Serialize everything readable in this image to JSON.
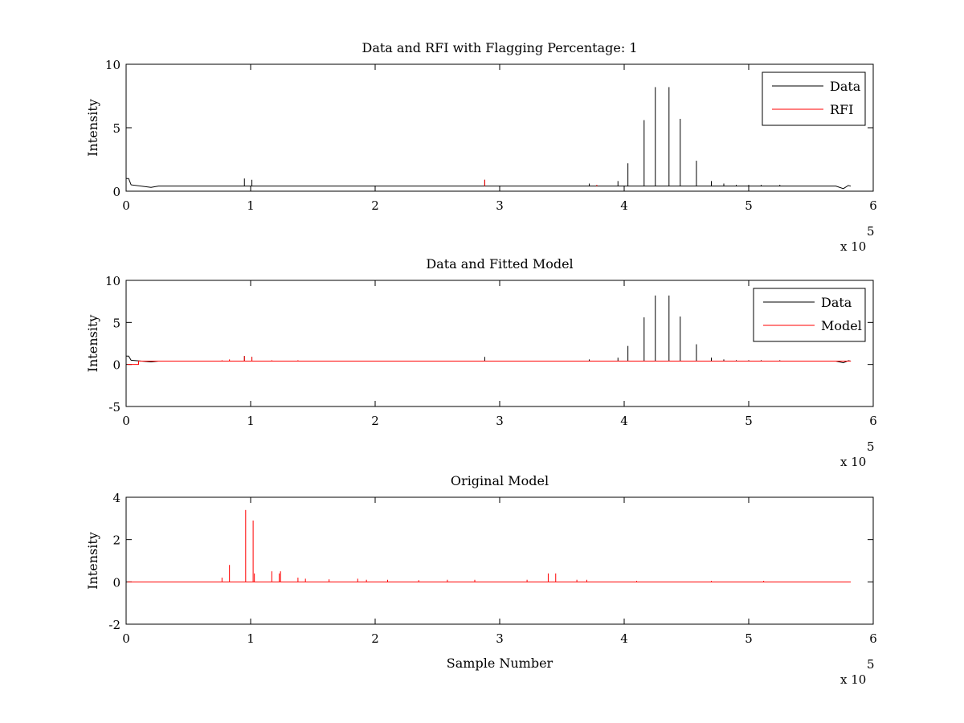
{
  "chart_data": [
    {
      "type": "line",
      "title": "Data and RFI with Flagging Percentage: 1",
      "xlabel": "",
      "ylabel": "Intensity",
      "xlim": [
        0,
        6
      ],
      "ylim": [
        0,
        10
      ],
      "x_ticks": [
        "0",
        "1",
        "2",
        "3",
        "4",
        "5",
        "6"
      ],
      "y_ticks": [
        "0",
        "5",
        "10"
      ],
      "x_exponent_label": "x 10",
      "x_exponent": "5",
      "legend_position": "top-right",
      "baseline": 0.4,
      "series": [
        {
          "name": "Data",
          "color": "#000000",
          "spikes": [
            [
              0.95,
              1.0
            ],
            [
              1.01,
              0.9
            ],
            [
              2.88,
              0.9
            ],
            [
              3.72,
              0.6
            ],
            [
              3.95,
              0.8
            ],
            [
              4.03,
              2.2
            ],
            [
              4.16,
              5.6
            ],
            [
              4.25,
              8.2
            ],
            [
              4.36,
              8.2
            ],
            [
              4.45,
              5.7
            ],
            [
              4.58,
              2.4
            ],
            [
              4.7,
              0.8
            ],
            [
              4.8,
              0.6
            ],
            [
              4.9,
              0.5
            ],
            [
              5.0,
              0.5
            ],
            [
              5.1,
              0.5
            ],
            [
              5.25,
              0.5
            ],
            [
              5.4,
              0.4
            ],
            [
              5.55,
              0.4
            ]
          ]
        },
        {
          "name": "RFI",
          "color": "#ff0000",
          "spikes": [
            [
              2.88,
              0.9
            ],
            [
              3.78,
              0.5
            ],
            [
              3.82,
              0.4
            ]
          ]
        }
      ]
    },
    {
      "type": "line",
      "title": "Data and Fitted Model",
      "xlabel": "",
      "ylabel": "Intensity",
      "xlim": [
        0,
        6
      ],
      "ylim": [
        -5,
        10
      ],
      "x_ticks": [
        "0",
        "1",
        "2",
        "3",
        "4",
        "5",
        "6"
      ],
      "y_ticks": [
        "-5",
        "0",
        "5",
        "10"
      ],
      "x_exponent_label": "x 10",
      "x_exponent": "5",
      "legend_position": "top-right",
      "baseline": 0.4,
      "series": [
        {
          "name": "Data",
          "color": "#000000",
          "spikes": [
            [
              0.95,
              1.0
            ],
            [
              1.01,
              0.9
            ],
            [
              2.88,
              0.9
            ],
            [
              3.72,
              0.6
            ],
            [
              3.95,
              0.8
            ],
            [
              4.03,
              2.2
            ],
            [
              4.16,
              5.6
            ],
            [
              4.25,
              8.2
            ],
            [
              4.36,
              8.2
            ],
            [
              4.45,
              5.7
            ],
            [
              4.58,
              2.4
            ],
            [
              4.7,
              0.8
            ],
            [
              4.8,
              0.6
            ],
            [
              4.9,
              0.5
            ],
            [
              5.0,
              0.5
            ],
            [
              5.1,
              0.5
            ],
            [
              5.25,
              0.5
            ],
            [
              5.4,
              0.4
            ],
            [
              5.55,
              0.4
            ]
          ]
        },
        {
          "name": "Model",
          "color": "#ff0000",
          "spikes": [
            [
              0.95,
              1.0
            ],
            [
              1.01,
              0.9
            ],
            [
              0.77,
              0.5
            ],
            [
              0.83,
              0.6
            ],
            [
              1.17,
              0.5
            ],
            [
              1.38,
              0.5
            ]
          ]
        }
      ]
    },
    {
      "type": "line",
      "title": "Original Model",
      "xlabel": "Sample Number",
      "ylabel": "Intensity",
      "xlim": [
        0,
        6
      ],
      "ylim": [
        -2,
        4
      ],
      "x_ticks": [
        "0",
        "1",
        "2",
        "3",
        "4",
        "5",
        "6"
      ],
      "y_ticks": [
        "-2",
        "0",
        "2",
        "4"
      ],
      "x_exponent_label": "x 10",
      "x_exponent": "5",
      "baseline": 0.0,
      "series": [
        {
          "color": "#ff0000",
          "spikes": [
            [
              0.77,
              0.2
            ],
            [
              0.83,
              0.8
            ],
            [
              0.96,
              3.4
            ],
            [
              1.02,
              2.9
            ],
            [
              1.03,
              0.4
            ],
            [
              1.17,
              0.5
            ],
            [
              1.23,
              0.4
            ],
            [
              1.24,
              0.5
            ],
            [
              1.38,
              0.2
            ],
            [
              1.44,
              0.15
            ],
            [
              1.63,
              0.12
            ],
            [
              1.86,
              0.15
            ],
            [
              1.93,
              0.1
            ],
            [
              2.1,
              0.1
            ],
            [
              2.35,
              0.08
            ],
            [
              2.58,
              0.1
            ],
            [
              2.8,
              0.1
            ],
            [
              3.22,
              0.1
            ],
            [
              3.39,
              0.4
            ],
            [
              3.45,
              0.4
            ],
            [
              3.62,
              0.1
            ],
            [
              3.7,
              0.1
            ],
            [
              4.1,
              0.05
            ],
            [
              4.7,
              0.05
            ],
            [
              5.12,
              0.05
            ]
          ]
        }
      ]
    }
  ]
}
